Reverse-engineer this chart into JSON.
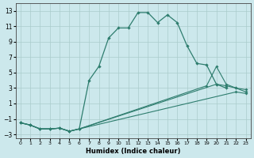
{
  "xlabel": "Humidex (Indice chaleur)",
  "bg_color": "#cce8ec",
  "grid_color": "#aacccc",
  "line_color": "#2e7d6e",
  "xlim": [
    -0.5,
    23.5
  ],
  "ylim": [
    -3.5,
    14.0
  ],
  "xticks": [
    0,
    1,
    2,
    3,
    4,
    5,
    6,
    7,
    8,
    9,
    10,
    11,
    12,
    13,
    14,
    15,
    16,
    17,
    18,
    19,
    20,
    21,
    22,
    23
  ],
  "yticks": [
    -3,
    -1,
    1,
    3,
    5,
    7,
    9,
    11,
    13
  ],
  "line1_x": [
    0,
    1,
    2,
    3,
    4,
    5,
    6,
    7,
    8,
    9,
    10,
    11,
    12,
    13,
    14,
    15,
    16,
    17,
    18,
    19,
    20,
    21
  ],
  "line1_y": [
    -1.5,
    -1.8,
    -2.3,
    -2.3,
    -2.2,
    -2.6,
    -2.3,
    4.0,
    5.8,
    9.5,
    10.8,
    10.8,
    12.8,
    12.8,
    11.5,
    12.5,
    11.5,
    8.5,
    6.2,
    6.0,
    3.5,
    3.0
  ],
  "line2_x": [
    0,
    1,
    2,
    3,
    4,
    5,
    6,
    19,
    20,
    21,
    22,
    23
  ],
  "line2_y": [
    -1.5,
    -1.8,
    -2.3,
    -2.3,
    -2.2,
    -2.6,
    -2.3,
    3.3,
    5.8,
    3.5,
    3.0,
    2.5
  ],
  "line3_x": [
    0,
    1,
    2,
    3,
    4,
    5,
    6,
    20,
    21,
    22,
    23
  ],
  "line3_y": [
    -1.5,
    -1.8,
    -2.3,
    -2.3,
    -2.2,
    -2.6,
    -2.3,
    3.5,
    3.3,
    3.0,
    2.8
  ],
  "line4_x": [
    0,
    1,
    2,
    3,
    4,
    5,
    6,
    22,
    23
  ],
  "line4_y": [
    -1.5,
    -1.8,
    -2.3,
    -2.3,
    -2.2,
    -2.6,
    -2.3,
    2.5,
    2.3
  ]
}
